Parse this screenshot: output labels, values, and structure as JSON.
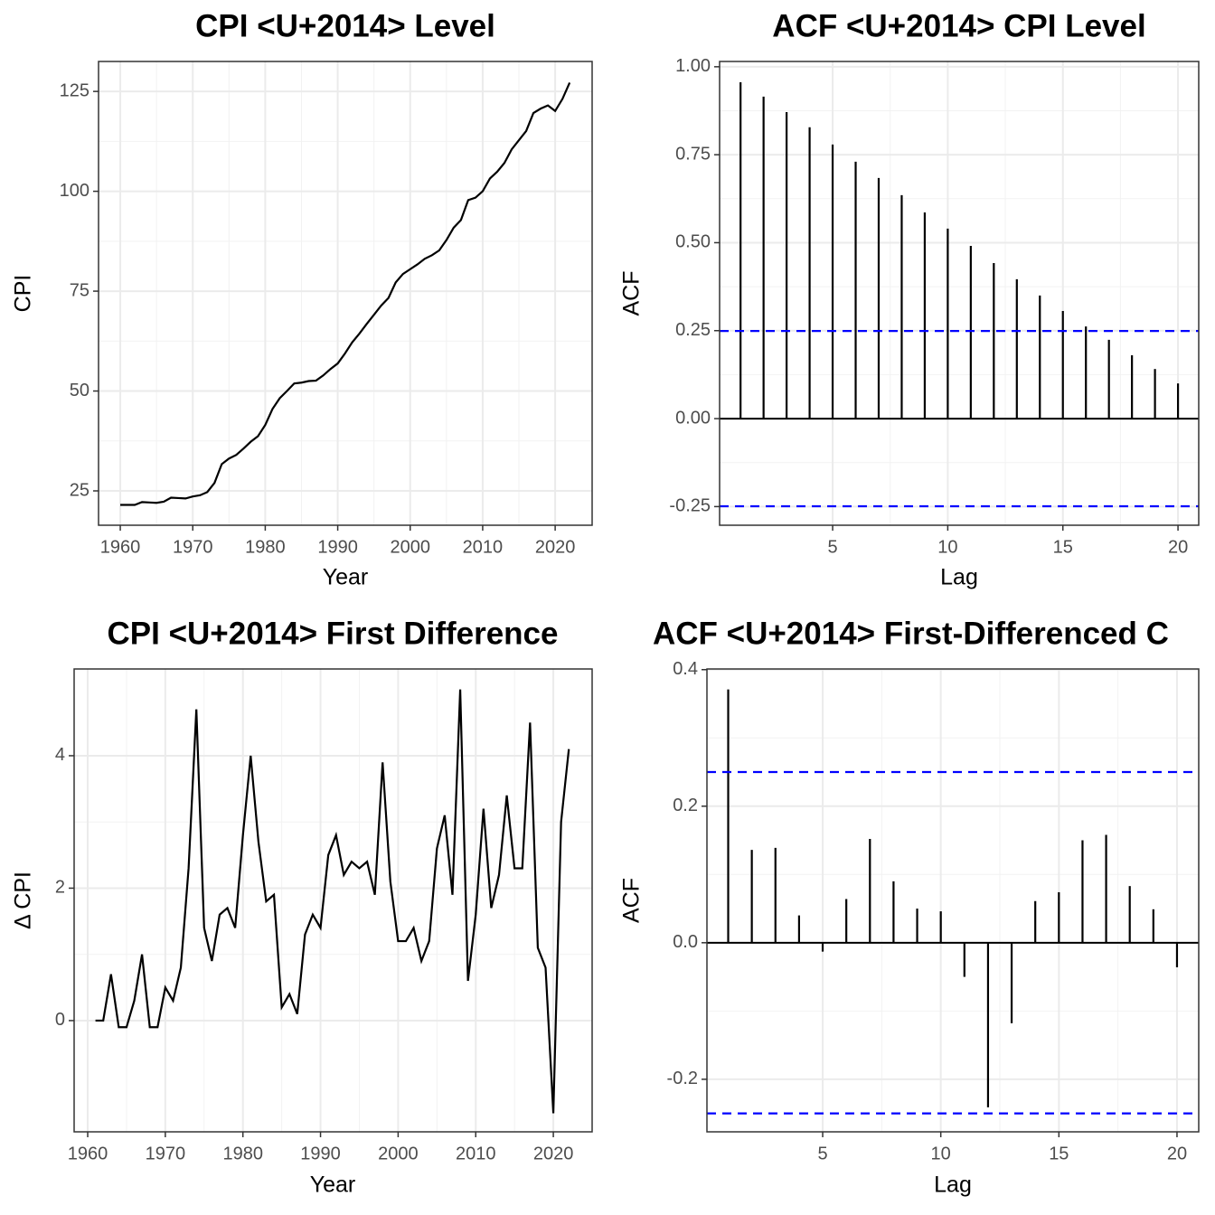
{
  "chart_data": [
    {
      "type": "line",
      "title": "CPI <U+2014> Level",
      "x_label": "Year",
      "y_label": "CPI",
      "color": "#000000",
      "grid": true,
      "x": [
        1960,
        1961,
        1962,
        1963,
        1964,
        1965,
        1966,
        1967,
        1968,
        1969,
        1970,
        1971,
        1972,
        1973,
        1974,
        1975,
        1976,
        1977,
        1978,
        1979,
        1980,
        1981,
        1982,
        1983,
        1984,
        1985,
        1986,
        1987,
        1988,
        1989,
        1990,
        1991,
        1992,
        1993,
        1994,
        1995,
        1996,
        1997,
        1998,
        1999,
        2000,
        2001,
        2002,
        2003,
        2004,
        2005,
        2006,
        2007,
        2008,
        2009,
        2010,
        2011,
        2012,
        2013,
        2014,
        2015,
        2016,
        2017,
        2018,
        2019,
        2020,
        2021,
        2022
      ],
      "values": [
        21.5,
        21.5,
        21.5,
        22.2,
        22.1,
        22.0,
        22.3,
        23.3,
        23.2,
        23.1,
        23.6,
        23.9,
        24.7,
        27.0,
        31.7,
        33.1,
        34.0,
        35.6,
        37.3,
        38.7,
        41.5,
        45.5,
        48.2,
        50.0,
        51.9,
        52.1,
        52.5,
        52.6,
        53.9,
        55.5,
        56.9,
        59.4,
        62.2,
        64.4,
        66.8,
        69.1,
        71.4,
        73.3,
        77.2,
        79.3,
        80.5,
        81.7,
        83.1,
        84.0,
        85.2,
        87.8,
        90.9,
        92.8,
        97.8,
        98.4,
        100.0,
        103.2,
        104.9,
        107.1,
        110.5,
        112.8,
        115.1,
        119.6,
        120.7,
        121.5,
        120.1,
        123.1,
        127.2
      ],
      "xlim": [
        1957.0,
        2025.1
      ],
      "xticks": [
        1960,
        1970,
        1980,
        1990,
        2000,
        2010,
        2020
      ],
      "ylim": [
        16.4,
        132.5
      ],
      "yticks": [
        25,
        50,
        75,
        100,
        125
      ]
    },
    {
      "type": "stem",
      "title": "ACF <U+2014> CPI Level",
      "x_label": "Lag",
      "y_label": "ACF",
      "color": "#000000",
      "grid": true,
      "x": [
        1,
        2,
        3,
        4,
        5,
        6,
        7,
        8,
        9,
        10,
        11,
        12,
        13,
        14,
        15,
        16,
        17,
        18,
        19,
        20
      ],
      "values": [
        0.956,
        0.915,
        0.871,
        0.828,
        0.779,
        0.73,
        0.684,
        0.635,
        0.586,
        0.54,
        0.491,
        0.442,
        0.396,
        0.35,
        0.306,
        0.262,
        0.224,
        0.18,
        0.141,
        0.1
      ],
      "ci_lines": [
        0.249,
        -0.249
      ],
      "ci_color": "#0000ff",
      "xlim": [
        0.09,
        20.9
      ],
      "xticks": [
        5,
        10,
        15,
        20
      ],
      "ylim": [
        -0.303,
        1.015
      ],
      "yticks": [
        {
          "value": 1,
          "label": "1.00"
        },
        {
          "value": 0.75,
          "label": "0.75"
        },
        {
          "value": 0.5,
          "label": "0.50"
        },
        {
          "value": 0.25,
          "label": "0.25"
        },
        {
          "value": 0,
          "label": "0.00"
        },
        {
          "value": -0.25,
          "label": "-0.25"
        }
      ]
    },
    {
      "type": "line",
      "title": "CPI <U+2014> First Difference",
      "x_label": "Year",
      "y_label": "Δ CPI",
      "color": "#000000",
      "grid": true,
      "x": [
        1961,
        1962,
        1963,
        1964,
        1965,
        1966,
        1967,
        1968,
        1969,
        1970,
        1971,
        1972,
        1973,
        1974,
        1975,
        1976,
        1977,
        1978,
        1979,
        1980,
        1981,
        1982,
        1983,
        1984,
        1985,
        1986,
        1987,
        1988,
        1989,
        1990,
        1991,
        1992,
        1993,
        1994,
        1995,
        1996,
        1997,
        1998,
        1999,
        2000,
        2001,
        2002,
        2003,
        2004,
        2005,
        2006,
        2007,
        2008,
        2009,
        2010,
        2011,
        2012,
        2013,
        2014,
        2015,
        2016,
        2017,
        2018,
        2019,
        2020,
        2021,
        2022
      ],
      "values": [
        0,
        0,
        0.7,
        -0.1,
        -0.1,
        0.3,
        1.0,
        -0.1,
        -0.1,
        0.5,
        0.3,
        0.8,
        2.3,
        4.7,
        1.4,
        0.9,
        1.6,
        1.7,
        1.4,
        2.8,
        4.0,
        2.7,
        1.8,
        1.9,
        0.2,
        0.4,
        0.1,
        1.3,
        1.6,
        1.4,
        2.5,
        2.8,
        2.2,
        2.4,
        2.3,
        2.4,
        1.9,
        3.9,
        2.1,
        1.2,
        1.2,
        1.4,
        0.9,
        1.2,
        2.6,
        3.1,
        1.9,
        5.0,
        0.6,
        1.6,
        3.2,
        1.7,
        2.2,
        3.4,
        2.3,
        2.3,
        4.5,
        1.1,
        0.8,
        -1.4,
        3.0,
        4.1
      ],
      "xlim": [
        1958.25,
        2025.0
      ],
      "xticks": [
        1960,
        1970,
        1980,
        1990,
        2000,
        2010,
        2020
      ],
      "ylim": [
        -1.68,
        5.31
      ],
      "yticks": [
        0,
        2,
        4
      ]
    },
    {
      "type": "stem",
      "title": "ACF <U+2014> First-Differenced C",
      "x_label": "Lag",
      "y_label": "ACF",
      "color": "#000000",
      "grid": true,
      "x": [
        1,
        2,
        3,
        4,
        5,
        6,
        7,
        8,
        9,
        10,
        11,
        12,
        13,
        14,
        15,
        16,
        17,
        18,
        19,
        20
      ],
      "values": [
        0.371,
        0.136,
        0.139,
        0.04,
        -0.013,
        0.064,
        0.152,
        0.09,
        0.05,
        0.046,
        -0.05,
        -0.241,
        -0.118,
        0.061,
        0.074,
        0.15,
        0.158,
        0.083,
        0.049,
        -0.036
      ],
      "ci_lines": [
        0.25,
        -0.25
      ],
      "ci_color": "#0000ff",
      "xlim": [
        0.1,
        20.92
      ],
      "xticks": [
        5,
        10,
        15,
        20
      ],
      "ylim": [
        -0.277,
        0.401
      ],
      "yticks": [
        0.4,
        0.2,
        {
          "value": 0,
          "label": "0.0"
        },
        -0.2
      ]
    }
  ]
}
